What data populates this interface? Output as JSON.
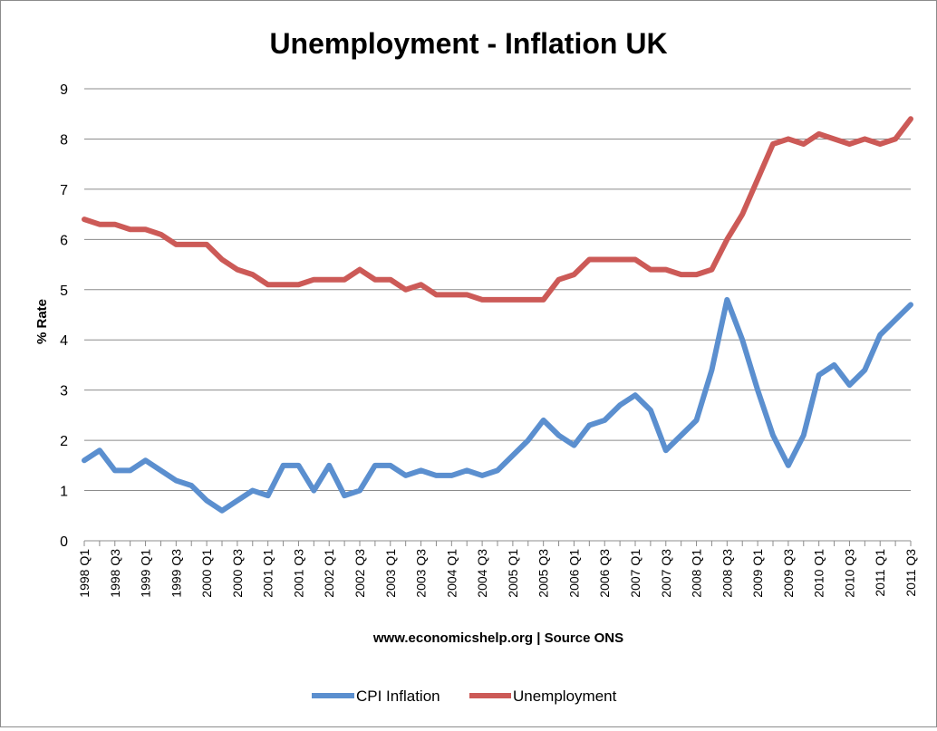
{
  "chart_data": {
    "type": "line",
    "title": "Unemployment - Inflation UK",
    "xlabel": "www.economicshelp.org | Source ONS",
    "ylabel": "% Rate",
    "ylim": [
      0,
      9
    ],
    "yticks": [
      "0",
      "1",
      "2",
      "3",
      "4",
      "5",
      "6",
      "7",
      "8",
      "9"
    ],
    "grid": "horizontal",
    "legend": "bottom",
    "categories": [
      "1998 Q1",
      "1998 Q2",
      "1998 Q3",
      "1998 Q4",
      "1999 Q1",
      "1999 Q2",
      "1999 Q3",
      "1999 Q4",
      "2000 Q1",
      "2000 Q2",
      "2000 Q3",
      "2000 Q4",
      "2001 Q1",
      "2001 Q2",
      "2001 Q3",
      "2001 Q4",
      "2002 Q1",
      "2002 Q2",
      "2002 Q3",
      "2002 Q4",
      "2003 Q1",
      "2003 Q2",
      "2003 Q3",
      "2003 Q4",
      "2004 Q1",
      "2004 Q2",
      "2004 Q3",
      "2004 Q4",
      "2005 Q1",
      "2005 Q2",
      "2005 Q3",
      "2005 Q4",
      "2006 Q1",
      "2006 Q2",
      "2006 Q3",
      "2006 Q4",
      "2007 Q1",
      "2007 Q2",
      "2007 Q3",
      "2007 Q4",
      "2008 Q1",
      "2008 Q2",
      "2008 Q3",
      "2008 Q4",
      "2009 Q1",
      "2009 Q2",
      "2009 Q3",
      "2009 Q4",
      "2010 Q1",
      "2010 Q2",
      "2010 Q3",
      "2010 Q4",
      "2011 Q1",
      "2011 Q2",
      "2011 Q3"
    ],
    "tick_labels": [
      "1998 Q1",
      "1998 Q3",
      "1999 Q1",
      "1999 Q3",
      "2000 Q1",
      "2000 Q3",
      "2001 Q1",
      "2001 Q3",
      "2002 Q1",
      "2002 Q3",
      "2003 Q1",
      "2003 Q3",
      "2004 Q1",
      "2004 Q3",
      "2005 Q1",
      "2005 Q3",
      "2006 Q1",
      "2006 Q3",
      "2007 Q1",
      "2007 Q3",
      "2008 Q1",
      "2008 Q3",
      "2009 Q1",
      "2009 Q3",
      "2010 Q1",
      "2010 Q3",
      "2011 Q1",
      "2011 Q3"
    ],
    "series": [
      {
        "name": "CPI Inflation",
        "color": "#5b8fcf",
        "values": [
          1.6,
          1.8,
          1.4,
          1.4,
          1.6,
          1.4,
          1.2,
          1.1,
          0.8,
          0.6,
          0.8,
          1.0,
          0.9,
          1.5,
          1.5,
          1.0,
          1.5,
          0.9,
          1.0,
          1.5,
          1.5,
          1.3,
          1.4,
          1.3,
          1.3,
          1.4,
          1.3,
          1.4,
          1.7,
          2.0,
          2.4,
          2.1,
          1.9,
          2.3,
          2.4,
          2.7,
          2.9,
          2.6,
          1.8,
          2.1,
          2.4,
          3.4,
          4.8,
          4.0,
          3.0,
          2.1,
          1.5,
          2.1,
          3.3,
          3.5,
          3.1,
          3.4,
          4.1,
          4.4,
          4.7
        ]
      },
      {
        "name": "Unemployment",
        "color": "#cc5a57",
        "values": [
          6.4,
          6.3,
          6.3,
          6.2,
          6.2,
          6.1,
          5.9,
          5.9,
          5.9,
          5.6,
          5.4,
          5.3,
          5.1,
          5.1,
          5.1,
          5.2,
          5.2,
          5.2,
          5.4,
          5.2,
          5.2,
          5.0,
          5.1,
          4.9,
          4.9,
          4.9,
          4.8,
          4.8,
          4.8,
          4.8,
          4.8,
          5.2,
          5.3,
          5.6,
          5.6,
          5.6,
          5.6,
          5.4,
          5.4,
          5.3,
          5.3,
          5.4,
          6.0,
          6.5,
          7.2,
          7.9,
          8.0,
          7.9,
          8.1,
          8.0,
          7.9,
          8.0,
          7.9,
          8.0,
          8.4
        ]
      }
    ]
  }
}
